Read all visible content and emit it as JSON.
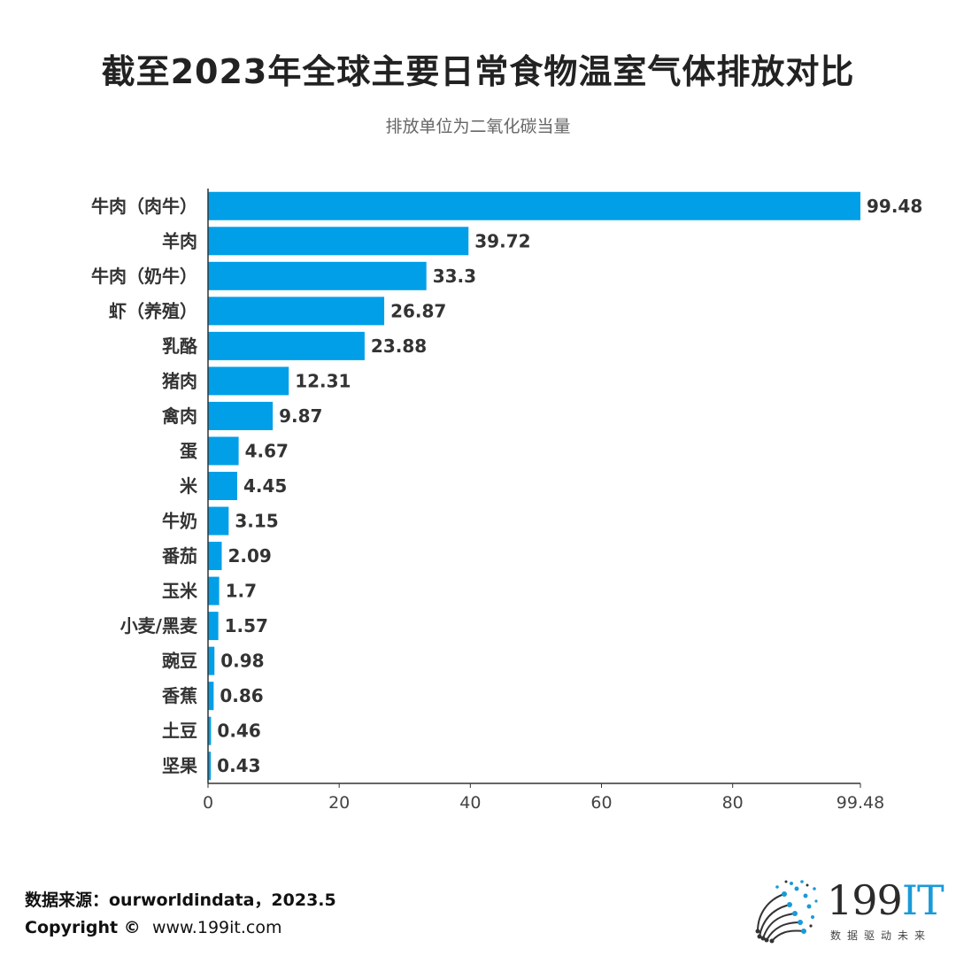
{
  "title": "截至2023年全球主要日常食物温室气体排放对比",
  "subtitle": "排放单位为二氧化碳当量",
  "footer": {
    "source": "数据来源：ourworldindata，2023.5",
    "copyright_label": "Copyright ©",
    "copyright_site": "www.199it.com"
  },
  "logo": {
    "name_digits": "199",
    "name_letters": "IT",
    "tagline": "数据驱动未来",
    "icon": "dot-network-logo-icon"
  },
  "colors": {
    "bar": "#009FE8",
    "axis": "#333333",
    "text": "#333333"
  },
  "chart_data": {
    "type": "bar",
    "orientation": "horizontal",
    "categories": [
      "牛肉（肉牛）",
      "羊肉",
      "牛肉（奶牛）",
      "虾（养殖）",
      "乳酪",
      "猪肉",
      "禽肉",
      "蛋",
      "米",
      "牛奶",
      "番茄",
      "玉米",
      "小麦/黑麦",
      "豌豆",
      "香蕉",
      "土豆",
      "坚果"
    ],
    "values": [
      99.48,
      39.72,
      33.3,
      26.87,
      23.88,
      12.31,
      9.87,
      4.67,
      4.45,
      3.15,
      2.09,
      1.7,
      1.57,
      0.98,
      0.86,
      0.46,
      0.43
    ],
    "value_labels": [
      "99.48",
      "39.72",
      "33.3",
      "26.87",
      "23.88",
      "12.31",
      "9.87",
      "4.67",
      "4.45",
      "3.15",
      "2.09",
      "1.7",
      "1.57",
      "0.98",
      "0.86",
      "0.46",
      "0.43"
    ],
    "x_ticks": [
      0,
      20,
      40,
      60,
      80,
      99.48
    ],
    "x_tick_labels": [
      "0",
      "20",
      "40",
      "60",
      "80",
      "99.48"
    ],
    "xlim": [
      0,
      99.48
    ],
    "grid": false,
    "legend": "none"
  }
}
